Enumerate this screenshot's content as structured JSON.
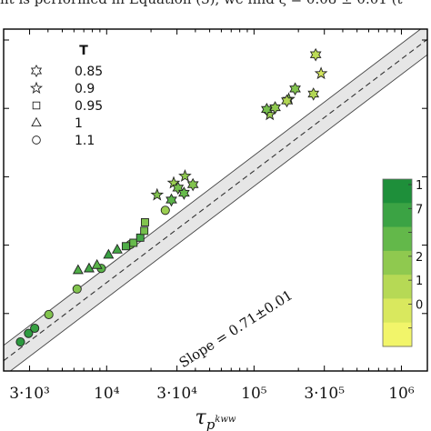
{
  "caption_fragment": "nt is performed in Equation (3), we find ξ = 0.08 ± 0.01 (t",
  "chart_data": {
    "type": "scatter",
    "xlabel": "τ_{p^{kww}}",
    "xscale": "log",
    "xlim": [
      2000,
      1500000
    ],
    "x_ticks": [
      {
        "value": 3000,
        "label": "3·10³"
      },
      {
        "value": 10000,
        "label": "10⁴"
      },
      {
        "value": 30000,
        "label": "3·10⁴"
      },
      {
        "value": 100000,
        "label": "10⁵"
      },
      {
        "value": 300000,
        "label": "3·10⁵"
      },
      {
        "value": 1000000,
        "label": "10⁶"
      }
    ],
    "ylim": [
      0.0,
      1.0
    ],
    "annotation": "Slope = 0.71±0.01",
    "legend": {
      "title": "T",
      "placement": "top-left",
      "entries": [
        {
          "label": "0.85",
          "marker": "star6"
        },
        {
          "label": "0.9",
          "marker": "star5"
        },
        {
          "label": "0.95",
          "marker": "square"
        },
        {
          "label": "1",
          "marker": "triangle"
        },
        {
          "label": "1.1",
          "marker": "circle"
        }
      ]
    },
    "colorbar": {
      "placement": "right",
      "colors": [
        "#1e8f3a",
        "#3ba344",
        "#63b84a",
        "#8fc94f",
        "#b6d955",
        "#d9e85e",
        "#f2f56a"
      ],
      "tick_labels": [
        "1",
        "7",
        "",
        "2",
        "1",
        "0",
        ""
      ]
    },
    "fit_line": {
      "style": "dashed",
      "x": [
        2000,
        1500000
      ],
      "y": [
        0.03,
        0.97
      ]
    },
    "confidence_band": {
      "half_width": 0.045
    },
    "series": [
      {
        "marker": "circle",
        "points": [
          {
            "x": 2600,
            "y": 0.085,
            "c": 0.92
          },
          {
            "x": 2950,
            "y": 0.11,
            "c": 0.9
          },
          {
            "x": 3250,
            "y": 0.125,
            "c": 0.85
          },
          {
            "x": 4050,
            "y": 0.165,
            "c": 0.55
          },
          {
            "x": 6300,
            "y": 0.24,
            "c": 0.55
          },
          {
            "x": 9200,
            "y": 0.3,
            "c": 0.7
          },
          {
            "x": 14500,
            "y": 0.37,
            "c": 0.6
          },
          {
            "x": 25000,
            "y": 0.47,
            "c": 0.45
          }
        ]
      },
      {
        "marker": "triangle",
        "points": [
          {
            "x": 6400,
            "y": 0.295,
            "c": 0.75
          },
          {
            "x": 7600,
            "y": 0.3,
            "c": 0.8
          },
          {
            "x": 8600,
            "y": 0.31,
            "c": 0.7
          },
          {
            "x": 10300,
            "y": 0.34,
            "c": 0.85
          },
          {
            "x": 11800,
            "y": 0.355,
            "c": 0.8
          }
        ]
      },
      {
        "marker": "square",
        "points": [
          {
            "x": 13500,
            "y": 0.365,
            "c": 0.75
          },
          {
            "x": 15200,
            "y": 0.375,
            "c": 0.65
          },
          {
            "x": 16900,
            "y": 0.39,
            "c": 0.8
          },
          {
            "x": 18000,
            "y": 0.41,
            "c": 0.6
          },
          {
            "x": 18200,
            "y": 0.435,
            "c": 0.55
          }
        ]
      },
      {
        "marker": "star5",
        "points": [
          {
            "x": 22000,
            "y": 0.515,
            "c": 0.55
          },
          {
            "x": 28500,
            "y": 0.55,
            "c": 0.45
          },
          {
            "x": 34000,
            "y": 0.57,
            "c": 0.5
          },
          {
            "x": 128000,
            "y": 0.75,
            "c": 0.45
          },
          {
            "x": 172000,
            "y": 0.795,
            "c": 0.55
          },
          {
            "x": 285000,
            "y": 0.87,
            "c": 0.2
          }
        ]
      },
      {
        "marker": "star6",
        "points": [
          {
            "x": 27500,
            "y": 0.5,
            "c": 0.7
          },
          {
            "x": 30500,
            "y": 0.535,
            "c": 0.6
          },
          {
            "x": 33500,
            "y": 0.52,
            "c": 0.65
          },
          {
            "x": 38500,
            "y": 0.545,
            "c": 0.55
          },
          {
            "x": 122000,
            "y": 0.765,
            "c": 0.6
          },
          {
            "x": 139000,
            "y": 0.77,
            "c": 0.5
          },
          {
            "x": 167000,
            "y": 0.79,
            "c": 0.35
          },
          {
            "x": 190000,
            "y": 0.825,
            "c": 0.55
          },
          {
            "x": 253000,
            "y": 0.81,
            "c": 0.35
          },
          {
            "x": 262000,
            "y": 0.925,
            "c": 0.3
          }
        ]
      }
    ]
  }
}
